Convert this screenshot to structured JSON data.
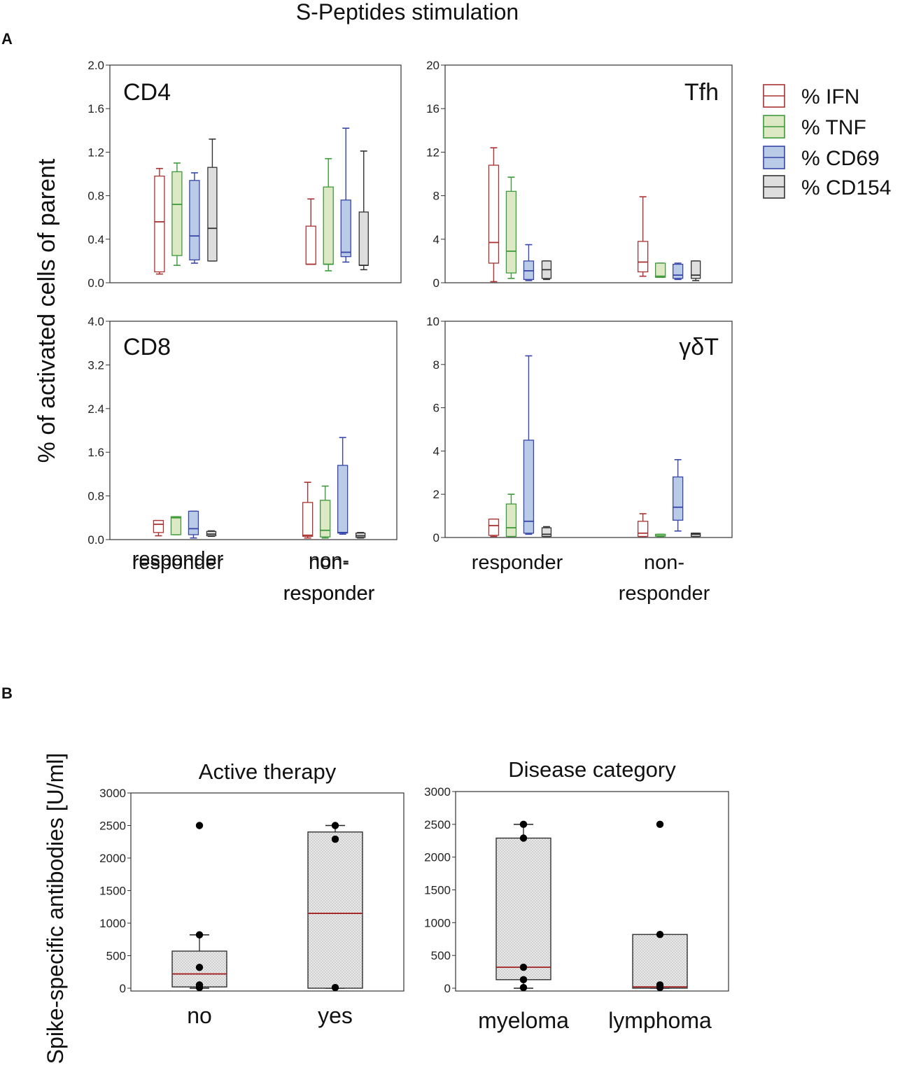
{
  "figure": {
    "title": "S-Peptides stimulation",
    "panel_a_label": "A",
    "panel_b_label": "B",
    "panel_a_ylabel": "% of activated cells of parent",
    "panel_b_ylabel": "Spike-specific antibodies [U/ml]"
  },
  "colors": {
    "ifn": "#a93232",
    "tnf": "#3e9a3a",
    "cd69": "#3746a8",
    "cd154": "#333333",
    "ifn_fill": "#ffffff",
    "tnf_fill": "#dde9c5",
    "cd69_fill": "#b9cbe6",
    "cd154_fill": "#dedede",
    "median_b": "#a02020"
  },
  "legend": [
    {
      "key": "ifn",
      "label": "% IFN"
    },
    {
      "key": "tnf",
      "label": "% TNF"
    },
    {
      "key": "cd69",
      "label": "% CD69"
    },
    {
      "key": "cd154",
      "label": "% CD154"
    }
  ],
  "chart_data": [
    {
      "type": "box",
      "title": "CD4",
      "ylim": [
        0,
        2.0
      ],
      "yticks": [
        "0.0",
        "0.4",
        "0.8",
        "1.2",
        "1.6",
        "2.0"
      ],
      "categories": [
        "responder",
        "non-responder"
      ],
      "series": [
        {
          "name": "% IFN",
          "boxes": [
            {
              "min": 0.08,
              "q1": 0.1,
              "median": 0.56,
              "q3": 0.98,
              "max": 1.05
            },
            {
              "min": 0.17,
              "q1": 0.17,
              "median": 0.17,
              "q3": 0.52,
              "max": 0.77
            }
          ]
        },
        {
          "name": "% TNF",
          "boxes": [
            {
              "min": 0.16,
              "q1": 0.25,
              "median": 0.72,
              "q3": 1.02,
              "max": 1.1
            },
            {
              "min": 0.11,
              "q1": 0.17,
              "median": 0.17,
              "q3": 0.88,
              "max": 1.14
            }
          ]
        },
        {
          "name": "% CD69",
          "boxes": [
            {
              "min": 0.18,
              "q1": 0.21,
              "median": 0.43,
              "q3": 0.94,
              "max": 1.01
            },
            {
              "min": 0.19,
              "q1": 0.24,
              "median": 0.28,
              "q3": 0.76,
              "max": 1.42
            }
          ]
        },
        {
          "name": "% CD154",
          "boxes": [
            {
              "min": 0.2,
              "q1": 0.2,
              "median": 0.5,
              "q3": 1.06,
              "max": 1.32
            },
            {
              "min": 0.12,
              "q1": 0.16,
              "median": 0.16,
              "q3": 0.65,
              "max": 1.21
            }
          ]
        }
      ]
    },
    {
      "type": "box",
      "title": "Tfh",
      "ylim": [
        0,
        20
      ],
      "yticks": [
        "0",
        "4",
        "8",
        "12",
        "16",
        "20"
      ],
      "categories": [
        "responder",
        "non-responder"
      ],
      "series": [
        {
          "name": "% IFN",
          "boxes": [
            {
              "min": 0.1,
              "q1": 1.8,
              "median": 3.7,
              "q3": 10.8,
              "max": 12.4
            },
            {
              "min": 0.6,
              "q1": 1.0,
              "median": 1.9,
              "q3": 3.8,
              "max": 7.9
            }
          ]
        },
        {
          "name": "% TNF",
          "boxes": [
            {
              "min": 0.4,
              "q1": 0.9,
              "median": 2.9,
              "q3": 8.4,
              "max": 9.7
            },
            {
              "min": 0.5,
              "q1": 0.5,
              "median": 0.6,
              "q3": 1.8,
              "max": 1.8
            }
          ]
        },
        {
          "name": "% CD69",
          "boxes": [
            {
              "min": 0.2,
              "q1": 0.3,
              "median": 1.1,
              "q3": 2.0,
              "max": 3.5
            },
            {
              "min": 0.3,
              "q1": 0.4,
              "median": 0.7,
              "q3": 1.7,
              "max": 1.8
            }
          ]
        },
        {
          "name": "% CD154",
          "boxes": [
            {
              "min": 0.3,
              "q1": 0.4,
              "median": 1.2,
              "q3": 2.0,
              "max": 2.0
            },
            {
              "min": 0.2,
              "q1": 0.4,
              "median": 0.7,
              "q3": 2.0,
              "max": 2.0
            }
          ]
        }
      ]
    },
    {
      "type": "box",
      "title": "CD8",
      "ylim": [
        0,
        4.0
      ],
      "yticks": [
        "0.0",
        "0.8",
        "1.6",
        "2.4",
        "3.2",
        "4.0"
      ],
      "categories": [
        "responder",
        "non-responder"
      ],
      "series": [
        {
          "name": "% IFN",
          "boxes": [
            {
              "min": 0.07,
              "q1": 0.13,
              "median": 0.28,
              "q3": 0.35,
              "max": 0.35
            },
            {
              "min": 0.03,
              "q1": 0.06,
              "median": 0.08,
              "q3": 0.68,
              "max": 1.05
            }
          ]
        },
        {
          "name": "% TNF",
          "boxes": [
            {
              "min": 0.09,
              "q1": 0.09,
              "median": 0.4,
              "q3": 0.42,
              "max": 0.42
            },
            {
              "min": 0.03,
              "q1": 0.05,
              "median": 0.17,
              "q3": 0.72,
              "max": 0.98
            }
          ]
        },
        {
          "name": "% CD69",
          "boxes": [
            {
              "min": 0.03,
              "q1": 0.09,
              "median": 0.2,
              "q3": 0.52,
              "max": 0.52
            },
            {
              "min": 0.1,
              "q1": 0.12,
              "median": 0.13,
              "q3": 1.36,
              "max": 1.87
            }
          ]
        },
        {
          "name": "% CD154",
          "boxes": [
            {
              "min": 0.06,
              "q1": 0.07,
              "median": 0.1,
              "q3": 0.15,
              "max": 0.16
            },
            {
              "min": 0.03,
              "q1": 0.04,
              "median": 0.07,
              "q3": 0.12,
              "max": 0.13
            }
          ]
        }
      ]
    },
    {
      "type": "box",
      "title": "γδT",
      "ylim": [
        0,
        10
      ],
      "yticks": [
        "0",
        "2",
        "4",
        "6",
        "8",
        "10"
      ],
      "categories": [
        "responder",
        "non-responder"
      ],
      "series": [
        {
          "name": "% IFN",
          "boxes": [
            {
              "min": 0.05,
              "q1": 0.1,
              "median": 0.55,
              "q3": 0.85,
              "max": 0.85
            },
            {
              "min": 0.05,
              "q1": 0.05,
              "median": 0.2,
              "q3": 0.75,
              "max": 1.1
            }
          ]
        },
        {
          "name": "% TNF",
          "boxes": [
            {
              "min": 0.05,
              "q1": 0.05,
              "median": 0.45,
              "q3": 1.55,
              "max": 2.0
            },
            {
              "min": 0.05,
              "q1": 0.06,
              "median": 0.08,
              "q3": 0.15,
              "max": 0.15
            }
          ]
        },
        {
          "name": "% CD69",
          "boxes": [
            {
              "min": 0.15,
              "q1": 0.2,
              "median": 0.75,
              "q3": 4.5,
              "max": 8.4
            },
            {
              "min": 0.3,
              "q1": 0.8,
              "median": 1.4,
              "q3": 2.8,
              "max": 3.6
            }
          ]
        },
        {
          "name": "% CD154",
          "boxes": [
            {
              "min": 0.05,
              "q1": 0.05,
              "median": 0.15,
              "q3": 0.45,
              "max": 0.5
            },
            {
              "min": 0.05,
              "q1": 0.05,
              "median": 0.15,
              "q3": 0.2,
              "max": 0.2
            }
          ]
        }
      ]
    },
    {
      "type": "box",
      "title": "Active therapy",
      "ylim": [
        0,
        3000
      ],
      "yticks": [
        "0",
        "500",
        "1000",
        "1500",
        "2000",
        "2500",
        "3000"
      ],
      "categories": [
        "no",
        "yes"
      ],
      "boxes": [
        {
          "min": 0,
          "q1": 20,
          "median": 220,
          "q3": 570,
          "max": 820,
          "points": [
            2500,
            820,
            320,
            50,
            10
          ]
        },
        {
          "min": 0,
          "q1": 0,
          "median": 1150,
          "q3": 2400,
          "max": 2500,
          "points": [
            2500,
            2290,
            10
          ]
        }
      ]
    },
    {
      "type": "box",
      "title": "Disease category",
      "ylim": [
        0,
        3000
      ],
      "yticks": [
        "0",
        "500",
        "1000",
        "1500",
        "2000",
        "2500",
        "3000"
      ],
      "categories": [
        "myeloma",
        "lymphoma"
      ],
      "boxes": [
        {
          "min": 0,
          "q1": 130,
          "median": 320,
          "q3": 2290,
          "max": 2500,
          "points": [
            2500,
            2290,
            320,
            130,
            10
          ]
        },
        {
          "min": 0,
          "q1": 0,
          "median": 20,
          "q3": 820,
          "max": 820,
          "points": [
            2500,
            820,
            50,
            10
          ]
        }
      ]
    }
  ]
}
